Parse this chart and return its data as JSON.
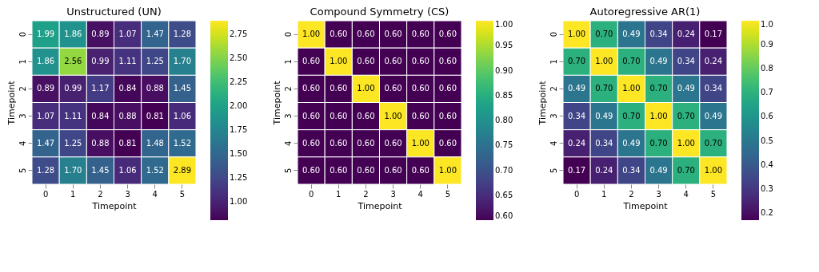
{
  "chart_data": [
    {
      "type": "heatmap",
      "title": "Unstructured (UN)",
      "xlabel": "Timepoint",
      "ylabel": "Timepoint",
      "categories": [
        "0",
        "1",
        "2",
        "3",
        "4",
        "5"
      ],
      "y_categories": [
        "0",
        "1",
        "2",
        "3",
        "4",
        "5"
      ],
      "cells": [
        [
          1.99,
          1.86,
          0.89,
          1.07,
          1.47,
          1.28
        ],
        [
          1.86,
          2.56,
          0.99,
          1.11,
          1.25,
          1.7
        ],
        [
          0.89,
          0.99,
          1.17,
          0.84,
          0.88,
          1.45
        ],
        [
          1.07,
          1.11,
          0.84,
          0.88,
          0.81,
          1.06
        ],
        [
          1.47,
          1.25,
          0.88,
          0.81,
          1.48,
          1.52
        ],
        [
          1.28,
          1.7,
          1.45,
          1.06,
          1.52,
          2.89
        ]
      ],
      "cell_labels": [
        [
          "1.99",
          "1.86",
          "0.89",
          "1.07",
          "1.47",
          "1.28"
        ],
        [
          "1.86",
          "2.56",
          "0.99",
          "1.11",
          "1.25",
          "1.70"
        ],
        [
          "0.89",
          "0.99",
          "1.17",
          "0.84",
          "0.88",
          "1.45"
        ],
        [
          "1.07",
          "1.11",
          "0.84",
          "0.88",
          "0.81",
          "1.06"
        ],
        [
          "1.47",
          "1.25",
          "0.88",
          "0.81",
          "1.48",
          "1.52"
        ],
        [
          "1.28",
          "1.70",
          "1.45",
          "1.06",
          "1.52",
          "2.89"
        ]
      ],
      "clim": [
        0.81,
        2.89
      ],
      "cticks": [
        {
          "value": 1,
          "label": "1.00"
        },
        1.25,
        {
          "value": 1.5,
          "label": "1.50"
        },
        1.75,
        {
          "value": 2,
          "label": "2.00"
        },
        2.25,
        {
          "value": 2.5,
          "label": "2.50"
        },
        2.75
      ]
    },
    {
      "type": "heatmap",
      "title": "Compound Symmetry (CS)",
      "xlabel": "Timepoint",
      "ylabel": "Timepoint",
      "categories": [
        "0",
        "1",
        "2",
        "3",
        "4",
        "5"
      ],
      "y_categories": [
        "0",
        "1",
        "2",
        "3",
        "4",
        "5"
      ],
      "cells": [
        [
          1.0,
          0.6,
          0.6,
          0.6,
          0.6,
          0.6
        ],
        [
          0.6,
          1.0,
          0.6,
          0.6,
          0.6,
          0.6
        ],
        [
          0.6,
          0.6,
          1.0,
          0.6,
          0.6,
          0.6
        ],
        [
          0.6,
          0.6,
          0.6,
          1.0,
          0.6,
          0.6
        ],
        [
          0.6,
          0.6,
          0.6,
          0.6,
          1.0,
          0.6
        ],
        [
          0.6,
          0.6,
          0.6,
          0.6,
          0.6,
          1.0
        ]
      ],
      "cell_labels": [
        [
          "1.00",
          "0.60",
          "0.60",
          "0.60",
          "0.60",
          "0.60"
        ],
        [
          "0.60",
          "1.00",
          "0.60",
          "0.60",
          "0.60",
          "0.60"
        ],
        [
          "0.60",
          "0.60",
          "1.00",
          "0.60",
          "0.60",
          "0.60"
        ],
        [
          "0.60",
          "0.60",
          "0.60",
          "1.00",
          "0.60",
          "0.60"
        ],
        [
          "0.60",
          "0.60",
          "0.60",
          "0.60",
          "1.00",
          "0.60"
        ],
        [
          "0.60",
          "0.60",
          "0.60",
          "0.60",
          "0.60",
          "1.00"
        ]
      ],
      "clim": [
        0.6,
        1.0
      ],
      "cticks": [
        {
          "value": 0.6,
          "label": "0.60"
        },
        0.65,
        {
          "value": 0.7,
          "label": "0.70"
        },
        0.75,
        {
          "value": 0.8,
          "label": "0.80"
        },
        0.85,
        {
          "value": 0.9,
          "label": "0.90"
        },
        0.95,
        {
          "value": 1,
          "label": "1.00"
        }
      ]
    },
    {
      "type": "heatmap",
      "title": "Autoregressive AR(1)",
      "xlabel": "Timepoint",
      "ylabel": "Timepoint",
      "categories": [
        "0",
        "1",
        "2",
        "3",
        "4",
        "5"
      ],
      "y_categories": [
        "0",
        "1",
        "2",
        "3",
        "4",
        "5"
      ],
      "cells": [
        [
          1.0,
          0.7,
          0.49,
          0.34,
          0.24,
          0.17
        ],
        [
          0.7,
          1.0,
          0.7,
          0.49,
          0.34,
          0.24
        ],
        [
          0.49,
          0.7,
          1.0,
          0.7,
          0.49,
          0.34
        ],
        [
          0.34,
          0.49,
          0.7,
          1.0,
          0.7,
          0.49
        ],
        [
          0.24,
          0.34,
          0.49,
          0.7,
          1.0,
          0.7
        ],
        [
          0.17,
          0.24,
          0.34,
          0.49,
          0.7,
          1.0
        ]
      ],
      "cell_labels": [
        [
          "1.00",
          "0.70",
          "0.49",
          "0.34",
          "0.24",
          "0.17"
        ],
        [
          "0.70",
          "1.00",
          "0.70",
          "0.49",
          "0.34",
          "0.24"
        ],
        [
          "0.49",
          "0.70",
          "1.00",
          "0.70",
          "0.49",
          "0.34"
        ],
        [
          "0.34",
          "0.49",
          "0.70",
          "1.00",
          "0.70",
          "0.49"
        ],
        [
          "0.24",
          "0.34",
          "0.49",
          "0.70",
          "1.00",
          "0.70"
        ],
        [
          "0.17",
          "0.24",
          "0.34",
          "0.49",
          "0.70",
          "1.00"
        ]
      ],
      "clim": [
        0.17,
        1.0
      ],
      "cticks": [
        0.2,
        0.3,
        0.4,
        0.5,
        0.6,
        0.7,
        0.8,
        0.9,
        {
          "value": 1,
          "label": "1.0"
        }
      ]
    }
  ]
}
